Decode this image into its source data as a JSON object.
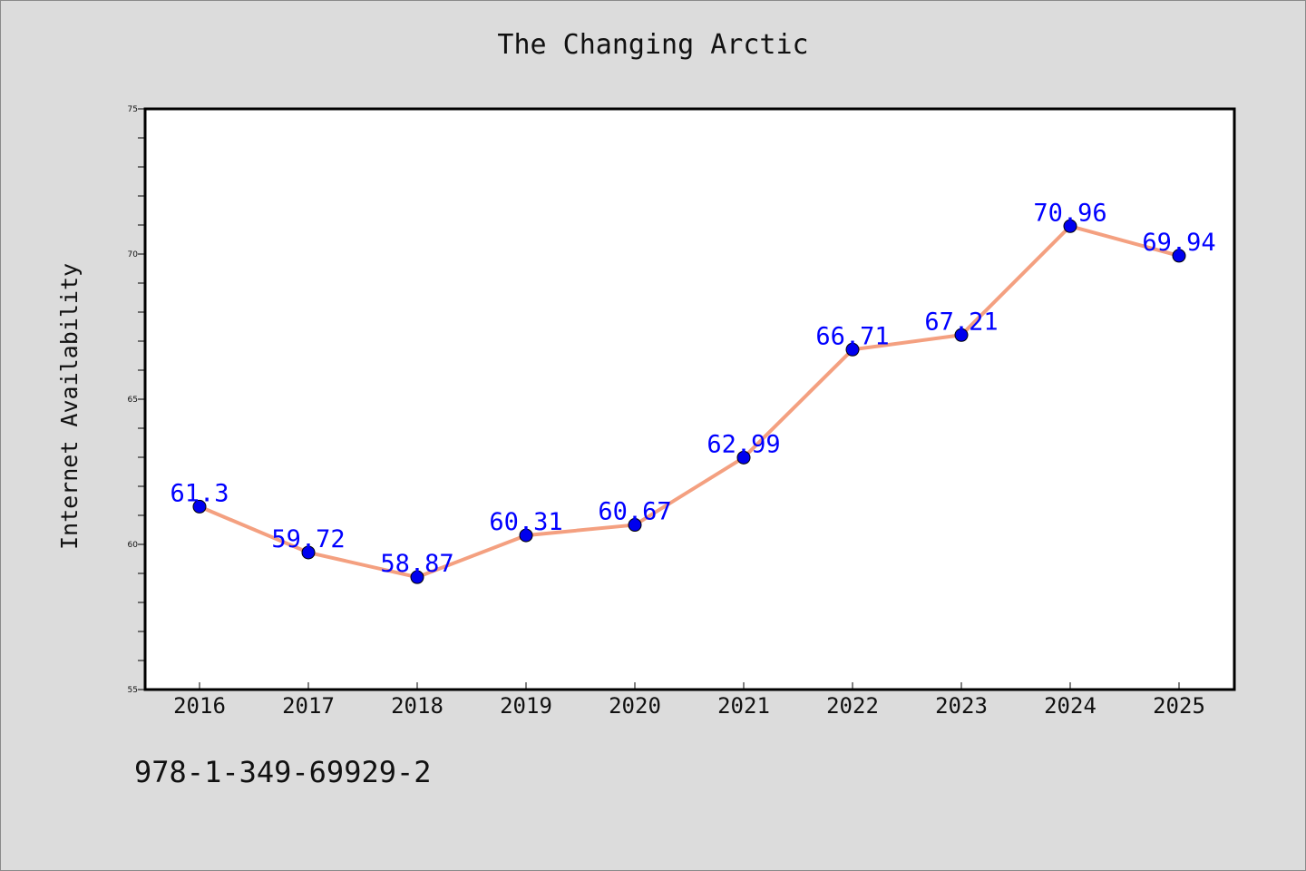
{
  "page": {
    "title": "The Changing Arctic",
    "footer_code": "978-1-349-69929-2"
  },
  "chart_data": {
    "type": "line",
    "title": "The Changing Arctic",
    "xlabel": "",
    "ylabel": "Internet Availability",
    "categories": [
      "2016",
      "2017",
      "2018",
      "2019",
      "2020",
      "2021",
      "2022",
      "2023",
      "2024",
      "2025"
    ],
    "values": [
      61.3,
      59.72,
      58.87,
      60.31,
      60.67,
      62.99,
      66.71,
      67.21,
      70.96,
      69.94
    ],
    "data_labels": [
      "61.3",
      "59.72",
      "58.87",
      "60.31",
      "60.67",
      "62.99",
      "66.71",
      "67.21",
      "70.96",
      "69.94"
    ],
    "ylim": [
      55,
      75
    ],
    "yticks": [
      "55",
      "60",
      "65",
      "70",
      "75"
    ],
    "grid": false,
    "legend": "none",
    "colors": {
      "line": "#f4a080",
      "marker": "#0000ee",
      "label": "#0000ff",
      "background": "#dcdcdc",
      "plot_background": "#ffffff"
    }
  }
}
